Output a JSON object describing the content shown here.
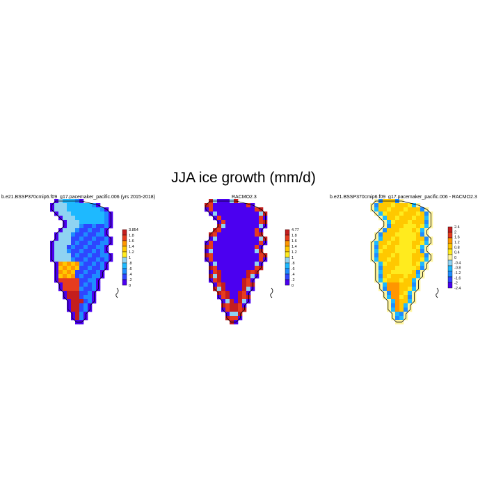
{
  "title": "JJA ice growth (mm/d)",
  "palette_seq": [
    "#4b00f0",
    "#2e46ff",
    "#1e8cff",
    "#1eb9ff",
    "#8fd3f2",
    "#ffeb1e",
    "#ffc800",
    "#ff9600",
    "#e63c1e",
    "#c41e1e"
  ],
  "palette_div": [
    "#4b00f0",
    "#2e46ff",
    "#1e8cff",
    "#1eb9ff",
    "#8fd3f2",
    "#fff5a0",
    "#ffeb1e",
    "#ffc800",
    "#ff9600",
    "#e63c1e",
    "#c41e1e"
  ],
  "panels": [
    {
      "title": "b.e21.BSSP370cmip6.f09_g17.pacemaker_pacific.006 (yrs 2015-2018)",
      "colorbar_labels": [
        "3.854",
        "1.8",
        "1.6",
        "1.4",
        "1.2",
        "1",
        "0.8",
        "0.6",
        "0.4",
        "0.2",
        "0"
      ],
      "colorbar_display": [
        "3.854",
        "1.8",
        "1.6",
        "1.4",
        "1.2",
        "1",
        ".8",
        ".6",
        ".4",
        ".2",
        "0"
      ]
    },
    {
      "title": "RACMO2.3",
      "colorbar_labels": [
        "4.77",
        "1.8",
        "1.6",
        "1.4",
        "1.2",
        "1",
        "0.8",
        "0.6",
        "0.4",
        "0.2",
        "0"
      ],
      "colorbar_display": [
        "4.77",
        "1.8",
        "1.6",
        "1.4",
        "1.2",
        "1",
        ".8",
        ".6",
        ".4",
        ".2",
        "0"
      ]
    },
    {
      "title": "b.e21.BSSP370cmip6.f09_g17.pacemaker_pacific.006 - RACMO2.3",
      "colorbar_labels": [
        "2.4",
        "2",
        "1.6",
        "1.2",
        "0.8",
        "0.4",
        "0",
        "-0.4",
        "-0.8",
        "-1.2",
        "-1.6",
        "-2",
        "-2.4"
      ],
      "colorbar_display": [
        "2.4",
        "2",
        "1.6",
        "1.2",
        "0.8",
        "0.4",
        "0",
        "-0.4",
        "-0.8",
        "-1.2",
        "-1.6",
        "-2",
        "-2.4"
      ]
    }
  ]
}
